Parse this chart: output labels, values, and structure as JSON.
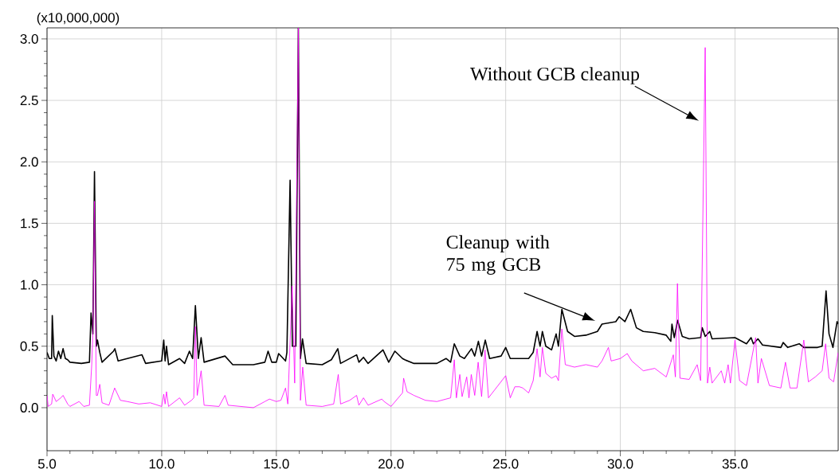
{
  "chart_data": {
    "type": "line",
    "ylabel": "(x10,000,000)",
    "xlim": [
      5,
      39.5
    ],
    "ylim": [
      -0.35,
      3.09
    ],
    "xticks": [
      {
        "value": 5,
        "label": "5.0"
      },
      {
        "value": 10,
        "label": "10.0"
      },
      {
        "value": 15,
        "label": "15.0"
      },
      {
        "value": 20,
        "label": "20.0"
      },
      {
        "value": 25,
        "label": "25.0"
      },
      {
        "value": 30,
        "label": "30.0"
      },
      {
        "value": 35,
        "label": "35.0"
      }
    ],
    "yticks": [
      {
        "value": 0,
        "label": "0.0"
      },
      {
        "value": 0.5,
        "label": "0.5"
      },
      {
        "value": 1,
        "label": "1.0"
      },
      {
        "value": 1.5,
        "label": "1.5"
      },
      {
        "value": 2,
        "label": "2.0"
      },
      {
        "value": 2.5,
        "label": "2.5"
      },
      {
        "value": 3,
        "label": "3.0"
      }
    ],
    "grid": true,
    "series": [
      {
        "color": "#000000",
        "x": [
          5.0,
          5.1,
          5.2,
          5.23,
          5.3,
          5.4,
          5.5,
          5.6,
          5.7,
          5.8,
          5.9,
          6.0,
          6.5,
          6.85,
          6.92,
          7.0,
          7.07,
          7.15,
          7.2,
          7.3,
          7.4,
          7.9,
          7.96,
          8.1,
          9.14,
          9.3,
          10.0,
          10.09,
          10.15,
          10.21,
          10.3,
          10.78,
          11.0,
          11.21,
          11.35,
          11.47,
          11.6,
          11.72,
          11.85,
          12.76,
          13.1,
          14.0,
          14.5,
          14.64,
          14.8,
          15.0,
          15.1,
          15.4,
          15.46,
          15.6,
          15.7,
          15.85,
          15.96,
          16.05,
          16.14,
          16.3,
          17.0,
          17.4,
          17.68,
          17.8,
          18.5,
          18.6,
          18.8,
          19.0,
          19.65,
          19.9,
          20.17,
          20.5,
          20.6,
          21.0,
          22.0,
          22.4,
          22.6,
          22.76,
          23.0,
          23.2,
          23.51,
          23.65,
          23.81,
          23.95,
          24.11,
          24.3,
          24.8,
          25.0,
          25.2,
          26.0,
          26.2,
          26.37,
          26.5,
          26.6,
          26.75,
          27.0,
          27.2,
          27.3,
          27.45,
          27.7,
          28.0,
          28.5,
          29.0,
          29.2,
          29.5,
          29.8,
          29.95,
          30.2,
          30.45,
          30.7,
          31.0,
          31.5,
          32.0,
          32.2,
          32.25,
          32.35,
          32.5,
          32.7,
          33.0,
          33.5,
          33.57,
          33.7,
          33.9,
          34.0,
          35.0,
          35.5,
          35.7,
          35.8,
          36.0,
          36.2,
          37.0,
          37.1,
          37.3,
          37.8,
          38.0,
          38.6,
          38.8,
          38.97,
          39.1,
          39.27,
          39.45,
          39.5
        ],
        "values": [
          0.45,
          0.4,
          0.4,
          0.75,
          0.42,
          0.38,
          0.46,
          0.4,
          0.48,
          0.4,
          0.39,
          0.37,
          0.36,
          0.37,
          0.77,
          0.6,
          1.92,
          0.5,
          0.55,
          0.45,
          0.37,
          0.46,
          0.48,
          0.38,
          0.43,
          0.36,
          0.38,
          0.55,
          0.38,
          0.5,
          0.35,
          0.4,
          0.36,
          0.46,
          0.4,
          0.83,
          0.4,
          0.57,
          0.37,
          0.42,
          0.35,
          0.35,
          0.37,
          0.46,
          0.37,
          0.37,
          0.44,
          0.38,
          0.45,
          1.85,
          0.5,
          0.5,
          3.09,
          0.4,
          0.56,
          0.36,
          0.35,
          0.39,
          0.48,
          0.36,
          0.43,
          0.37,
          0.41,
          0.36,
          0.47,
          0.37,
          0.46,
          0.4,
          0.39,
          0.36,
          0.36,
          0.4,
          0.37,
          0.52,
          0.42,
          0.4,
          0.48,
          0.42,
          0.54,
          0.42,
          0.55,
          0.4,
          0.42,
          0.49,
          0.4,
          0.4,
          0.45,
          0.62,
          0.5,
          0.62,
          0.5,
          0.47,
          0.6,
          0.5,
          0.8,
          0.62,
          0.58,
          0.59,
          0.62,
          0.68,
          0.69,
          0.7,
          0.74,
          0.7,
          0.8,
          0.65,
          0.62,
          0.61,
          0.59,
          0.54,
          0.68,
          0.57,
          0.71,
          0.58,
          0.56,
          0.57,
          0.65,
          0.58,
          0.62,
          0.56,
          0.57,
          0.52,
          0.57,
          0.52,
          0.56,
          0.51,
          0.49,
          0.53,
          0.49,
          0.52,
          0.49,
          0.49,
          0.5,
          0.95,
          0.6,
          0.49,
          0.7,
          0.68
        ]
      },
      {
        "color": "#ff00ff",
        "x": [
          5.0,
          5.05,
          5.2,
          5.25,
          5.4,
          5.6,
          5.7,
          5.9,
          6.0,
          6.4,
          6.6,
          6.85,
          6.95,
          7.0,
          7.07,
          7.15,
          7.2,
          7.3,
          7.4,
          7.7,
          7.95,
          8.2,
          8.5,
          9.0,
          9.5,
          10.0,
          10.09,
          10.15,
          10.21,
          10.3,
          10.78,
          11.0,
          11.3,
          11.4,
          11.47,
          11.55,
          11.72,
          11.85,
          12.5,
          12.76,
          12.9,
          14.0,
          14.5,
          14.7,
          15.0,
          15.2,
          15.4,
          15.5,
          15.69,
          15.8,
          15.96,
          16.05,
          16.15,
          16.3,
          17.0,
          17.5,
          17.7,
          17.8,
          18.2,
          18.5,
          18.6,
          18.8,
          19.0,
          19.6,
          19.7,
          20.0,
          20.5,
          20.55,
          20.7,
          21.0,
          21.5,
          22.0,
          22.4,
          22.6,
          22.76,
          22.85,
          23.0,
          23.1,
          23.3,
          23.4,
          23.5,
          23.65,
          23.8,
          23.95,
          24.1,
          24.25,
          25.0,
          25.2,
          25.4,
          25.6,
          25.75,
          26.0,
          26.2,
          26.37,
          26.5,
          26.6,
          26.75,
          27.0,
          27.2,
          27.3,
          27.45,
          27.6,
          28.0,
          28.5,
          29.0,
          29.2,
          29.48,
          29.6,
          30.0,
          30.3,
          30.5,
          31.0,
          31.5,
          32.0,
          32.31,
          32.4,
          32.49,
          32.6,
          33.0,
          33.35,
          33.5,
          33.7,
          33.8,
          33.9,
          34.0,
          34.4,
          34.55,
          34.7,
          34.8,
          35.0,
          35.2,
          35.5,
          35.9,
          36.0,
          36.15,
          36.5,
          37.0,
          37.2,
          37.4,
          37.7,
          38.0,
          38.2,
          38.5,
          38.8,
          38.95,
          39.1,
          39.3,
          39.5
        ],
        "values": [
          0.1,
          0.01,
          0.03,
          0.11,
          0.05,
          0.08,
          0.1,
          0.03,
          0.01,
          0.05,
          0.01,
          0.02,
          0.35,
          0.6,
          1.68,
          0.1,
          0.1,
          0.19,
          0.04,
          0.02,
          0.16,
          0.06,
          0.05,
          0.03,
          0.04,
          0.01,
          0.11,
          0.03,
          0.13,
          0.01,
          0.08,
          0.02,
          0.06,
          0.08,
          0.66,
          0.1,
          0.3,
          0.02,
          0.01,
          0.1,
          0.02,
          0.0,
          0.05,
          0.07,
          0.05,
          0.06,
          0.16,
          0.03,
          0.99,
          0.2,
          3.09,
          0.06,
          0.33,
          0.02,
          0.01,
          0.03,
          0.27,
          0.03,
          0.06,
          0.1,
          0.02,
          0.08,
          0.02,
          0.07,
          0.05,
          0.01,
          0.12,
          0.24,
          0.13,
          0.1,
          0.06,
          0.05,
          0.07,
          0.08,
          0.39,
          0.08,
          0.27,
          0.09,
          0.25,
          0.08,
          0.27,
          0.1,
          0.37,
          0.09,
          0.47,
          0.08,
          0.26,
          0.08,
          0.17,
          0.17,
          0.16,
          0.12,
          0.22,
          0.48,
          0.25,
          0.49,
          0.28,
          0.24,
          0.26,
          0.22,
          0.64,
          0.35,
          0.33,
          0.35,
          0.33,
          0.38,
          0.49,
          0.38,
          0.4,
          0.44,
          0.38,
          0.3,
          0.32,
          0.25,
          0.43,
          0.25,
          1.01,
          0.24,
          0.23,
          0.35,
          0.22,
          2.93,
          0.2,
          0.33,
          0.2,
          0.3,
          0.2,
          0.35,
          0.2,
          0.55,
          0.22,
          0.18,
          0.57,
          0.2,
          0.4,
          0.18,
          0.16,
          0.37,
          0.16,
          0.16,
          0.55,
          0.21,
          0.25,
          0.3,
          0.52,
          0.24,
          0.21,
          0.45
        ]
      }
    ],
    "annotations": [
      "Without GCB cleanup",
      "Cleanup with 75 mg GCB"
    ]
  }
}
